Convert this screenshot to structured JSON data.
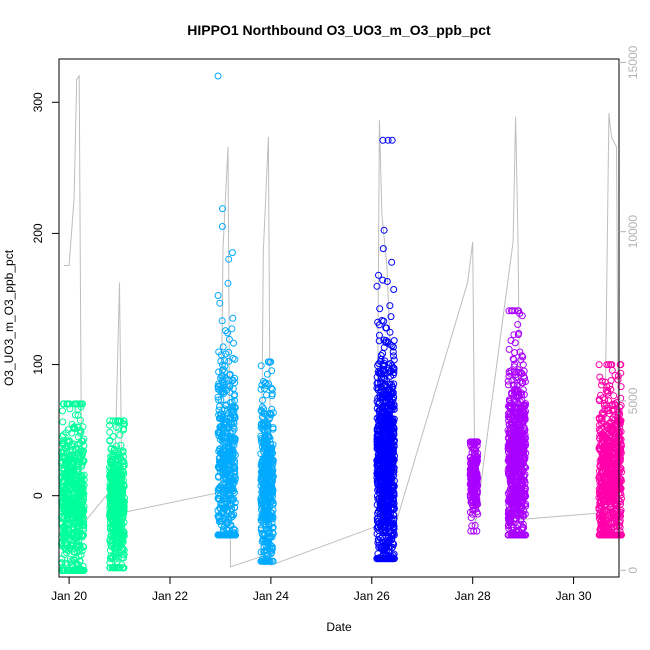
{
  "chart_data": {
    "type": "scatter",
    "title": "HIPPO1 Northbound O3_UO3_m_O3_ppb_pct",
    "xlabel": "Date",
    "ylabel": "O3_UO3_m_O3_ppb_pct",
    "x_range_days": [
      19.8,
      30.9
    ],
    "ylim": [
      -62,
      333
    ],
    "y2lim": [
      -200,
      15100
    ],
    "x_ticks": [
      {
        "value": 20,
        "label": "Jan 20"
      },
      {
        "value": 22,
        "label": "Jan 22"
      },
      {
        "value": 24,
        "label": "Jan 24"
      },
      {
        "value": 26,
        "label": "Jan 26"
      },
      {
        "value": 28,
        "label": "Jan 28"
      },
      {
        "value": 30,
        "label": "Jan 30"
      }
    ],
    "y_ticks": [
      0,
      100,
      200,
      300
    ],
    "y2_ticks": [
      0,
      5000,
      10000,
      15000
    ],
    "grid": false,
    "series_colors": {
      "flight1": "#00ff9a",
      "flight2": "#00aaff",
      "flight3": "#0000ff",
      "flight4": "#aa00ff",
      "flight5": "#ff00aa",
      "altitude_line": "#bebebe"
    },
    "clusters": [
      {
        "color": "flight1",
        "x_range": [
          19.85,
          20.3
        ],
        "y_center": -5,
        "y_spread": 30,
        "y_min": -57,
        "y_max": 70,
        "n": 600
      },
      {
        "color": "flight1",
        "x_range": [
          20.8,
          21.1
        ],
        "y_center": -5,
        "y_spread": 25,
        "y_min": -55,
        "y_max": 57,
        "n": 450
      },
      {
        "color": "flight2",
        "x_range": [
          22.95,
          23.3
        ],
        "y_center": 15,
        "y_spread": 45,
        "y_min": -30,
        "y_max": 320,
        "n": 500
      },
      {
        "color": "flight2",
        "x_range": [
          23.8,
          24.05
        ],
        "y_center": 10,
        "y_spread": 30,
        "y_min": -50,
        "y_max": 102,
        "n": 450
      },
      {
        "color": "flight3",
        "x_range": [
          26.1,
          26.45
        ],
        "y_center": 25,
        "y_spread": 40,
        "y_min": -48,
        "y_max": 271,
        "n": 900
      },
      {
        "color": "flight4",
        "x_range": [
          27.95,
          28.1
        ],
        "y_center": 15,
        "y_spread": 12,
        "y_min": -27,
        "y_max": 41,
        "n": 250
      },
      {
        "color": "flight4",
        "x_range": [
          28.7,
          29.05
        ],
        "y_center": 25,
        "y_spread": 35,
        "y_min": -30,
        "y_max": 141,
        "n": 700
      },
      {
        "color": "flight5",
        "x_range": [
          30.5,
          30.95
        ],
        "y_center": 15,
        "y_spread": 30,
        "y_min": -30,
        "y_max": 100,
        "n": 700
      }
    ],
    "altitude_path": [
      [
        19.9,
        9000
      ],
      [
        20.0,
        9000
      ],
      [
        20.1,
        11000
      ],
      [
        20.15,
        14500
      ],
      [
        20.2,
        14600
      ],
      [
        20.25,
        2000
      ],
      [
        20.35,
        1500
      ],
      [
        20.9,
        2500
      ],
      [
        21.0,
        8500
      ],
      [
        21.05,
        1700
      ],
      [
        23.0,
        2300
      ],
      [
        23.05,
        9500
      ],
      [
        23.15,
        12500
      ],
      [
        23.2,
        100
      ],
      [
        23.8,
        400
      ],
      [
        23.85,
        9400
      ],
      [
        23.95,
        12800
      ],
      [
        24.0,
        150
      ],
      [
        26.1,
        1300
      ],
      [
        26.15,
        13300
      ],
      [
        26.2,
        10500
      ],
      [
        26.3,
        9000
      ],
      [
        26.5,
        1500
      ],
      [
        27.9,
        8500
      ],
      [
        28.0,
        9700
      ],
      [
        28.05,
        1300
      ],
      [
        28.8,
        9700
      ],
      [
        28.85,
        13400
      ],
      [
        28.9,
        9600
      ],
      [
        28.95,
        1500
      ],
      [
        30.6,
        1700
      ],
      [
        30.7,
        13500
      ],
      [
        30.75,
        12800
      ],
      [
        30.85,
        12500
      ],
      [
        30.9,
        500
      ]
    ]
  }
}
